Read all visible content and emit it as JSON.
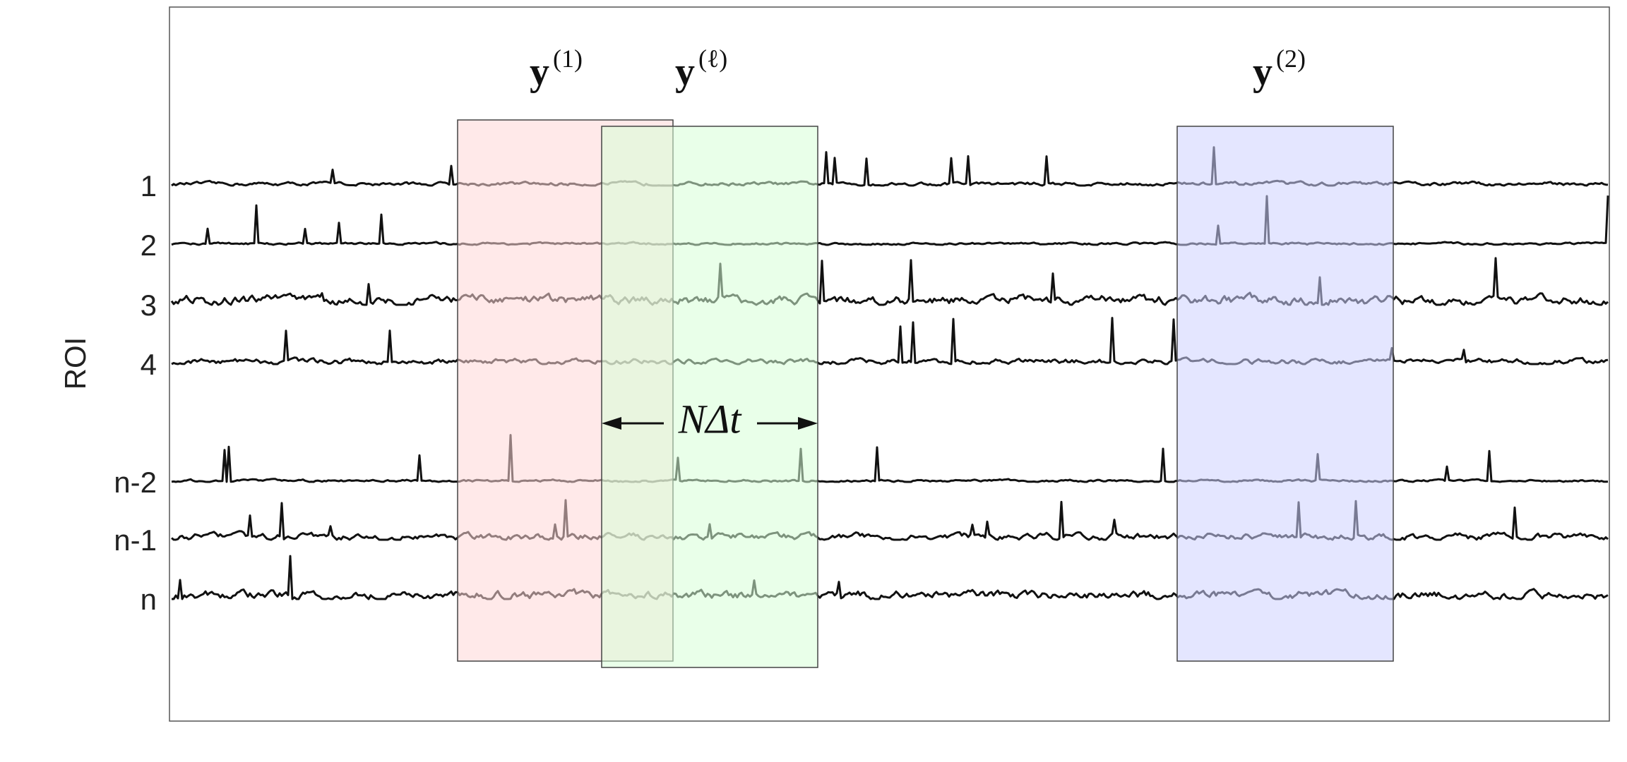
{
  "axis_label": "ROI",
  "rows": [
    "1",
    "2",
    "3",
    "4",
    "n-2",
    "n-1",
    "n"
  ],
  "windows": [
    {
      "symbol": "y",
      "superscript": "(1)"
    },
    {
      "symbol": "y",
      "superscript": "(ℓ)"
    },
    {
      "symbol": "y",
      "superscript": "(2)"
    }
  ],
  "span_label": "NΔt"
}
